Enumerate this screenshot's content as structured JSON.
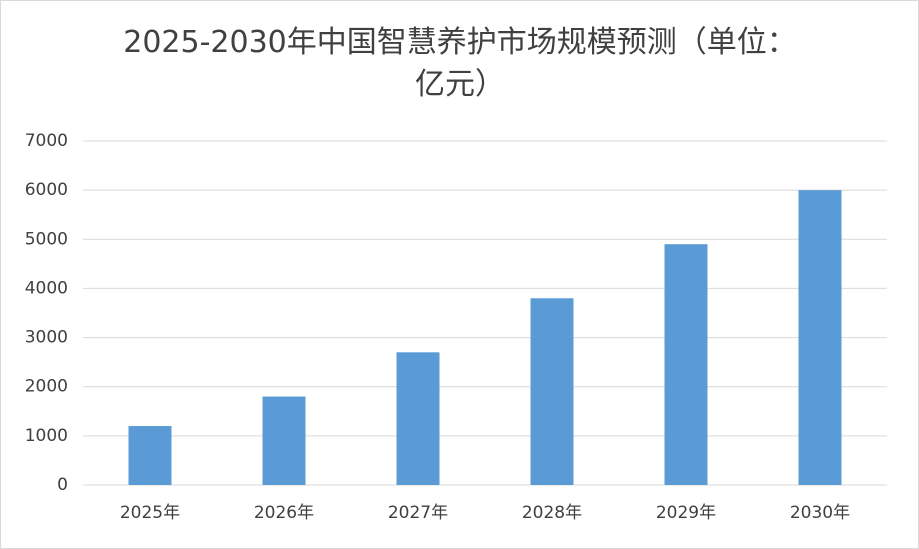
{
  "chart_data": {
    "type": "bar",
    "title": "2025-2030年中国智慧养护市场规模预测（单位：亿元）",
    "categories": [
      "2025年",
      "2026年",
      "2027年",
      "2028年",
      "2029年",
      "2030年"
    ],
    "values": [
      1200,
      1800,
      2700,
      3800,
      4900,
      6000
    ],
    "color": "#5b9bd5",
    "ylim": [
      0,
      7000
    ],
    "yticks": [
      0,
      1000,
      2000,
      3000,
      4000,
      5000,
      6000,
      7000
    ],
    "grid": true
  }
}
